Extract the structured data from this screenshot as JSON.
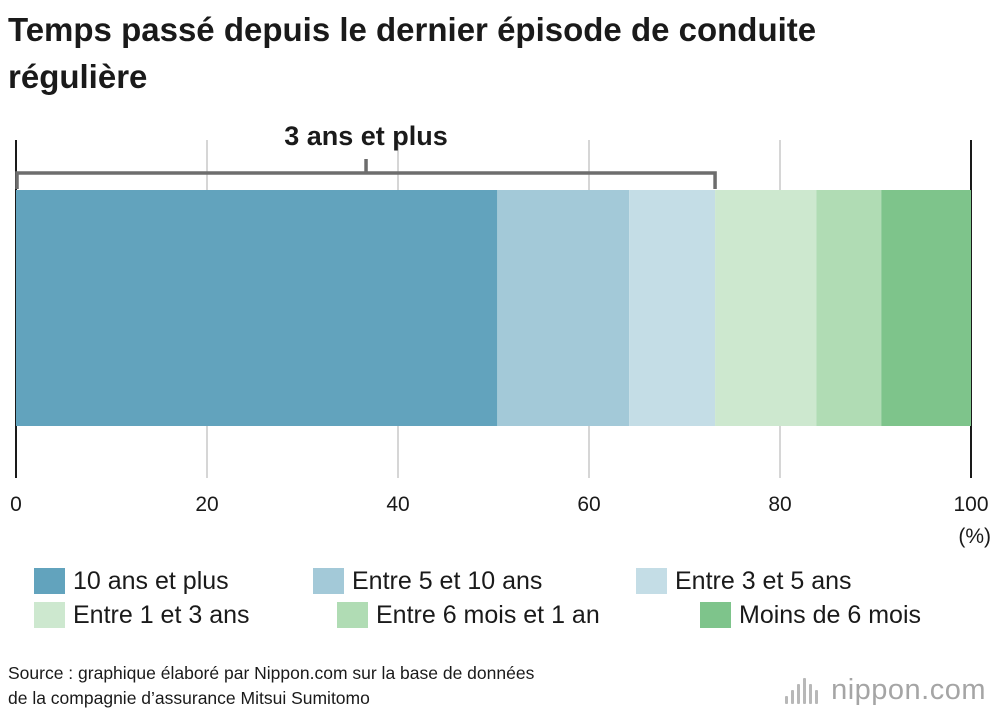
{
  "title": "Temps passé depuis le dernier épisode de conduite régulière",
  "chart_data": {
    "type": "bar",
    "orientation": "horizontal",
    "stacked": true,
    "categories": [
      ""
    ],
    "series": [
      {
        "name": "10 ans et plus",
        "values": [
          50.4
        ],
        "color": "#62a3bd"
      },
      {
        "name": "Entre 5 et 10 ans",
        "values": [
          13.8
        ],
        "color": "#a3c9d8"
      },
      {
        "name": "Entre 3 et 5 ans",
        "values": [
          9.0
        ],
        "color": "#c4dde6"
      },
      {
        "name": "Entre 1 et 3 ans",
        "values": [
          10.6
        ],
        "color": "#cde8cf"
      },
      {
        "name": "Entre 6 mois et 1 an",
        "values": [
          6.8
        ],
        "color": "#b0dcb4"
      },
      {
        "name": "Moins de 6 mois",
        "values": [
          9.4
        ],
        "color": "#7ec48b"
      }
    ],
    "xlim": [
      0,
      100
    ],
    "xticks": [
      0,
      20,
      40,
      60,
      80,
      100
    ],
    "xunit": "(%)",
    "grid": true,
    "bracket": {
      "label": "3 ans et plus",
      "from": 0,
      "to": 73.2
    },
    "legend_position": "bottom"
  },
  "source": {
    "line1": "Source : graphique élaboré par Nippon.com sur la base de données",
    "line2": "de la compagnie d’assurance Mitsui Sumitomo"
  },
  "brand": {
    "name": "nippon.com",
    "icon": "nippon-logo-icon"
  }
}
